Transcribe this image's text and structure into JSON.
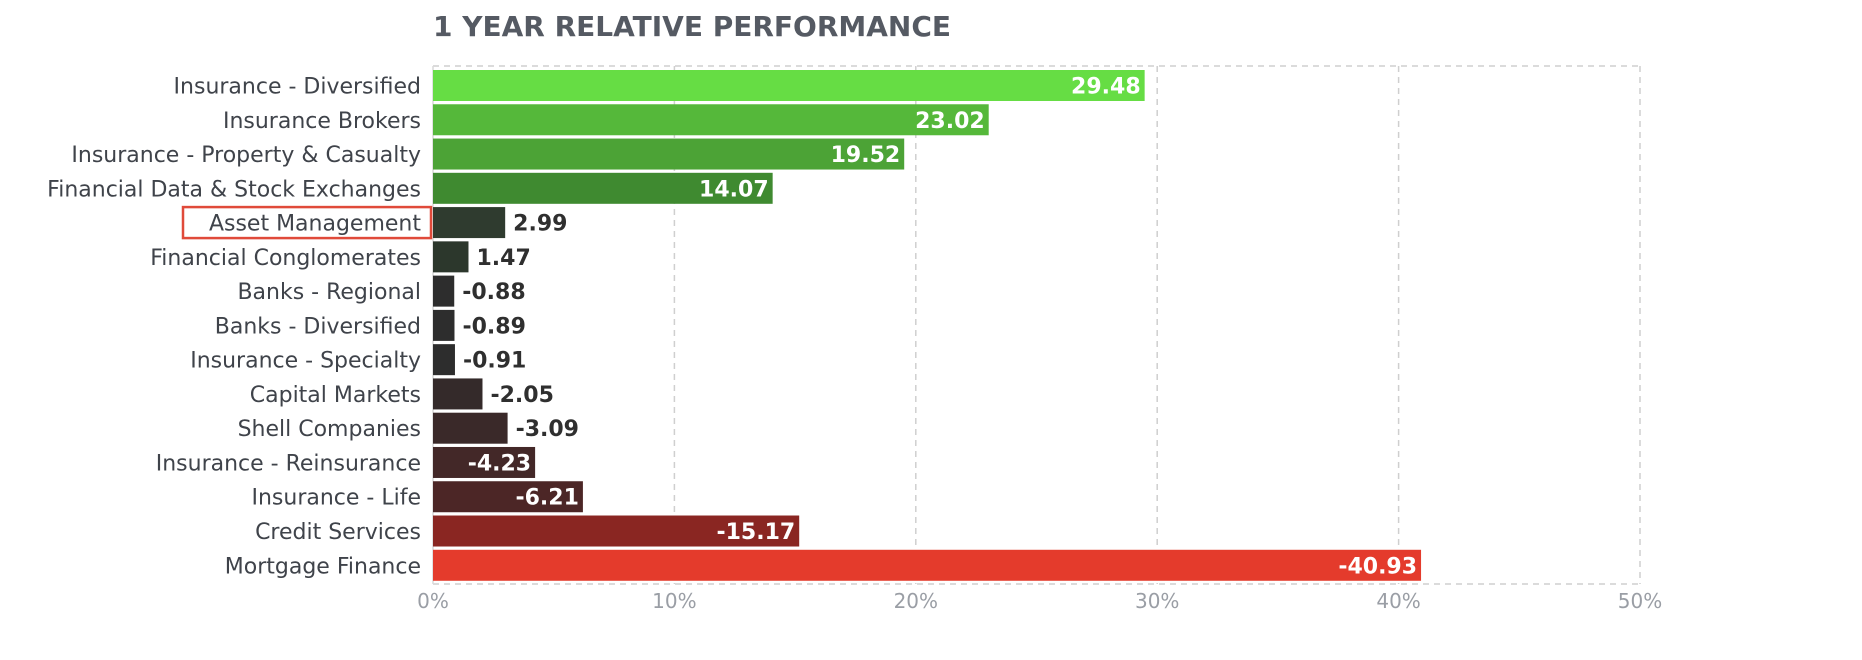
{
  "chart_data": {
    "type": "bar",
    "orientation": "horizontal",
    "title": "1 YEAR RELATIVE PERFORMANCE",
    "categories": [
      "Insurance - Diversified",
      "Insurance Brokers",
      "Insurance - Property & Casualty",
      "Financial Data & Stock Exchanges",
      "Asset Management",
      "Financial Conglomerates",
      "Banks - Regional",
      "Banks - Diversified",
      "Insurance - Specialty",
      "Capital Markets",
      "Shell Companies",
      "Insurance - Reinsurance",
      "Insurance - Life",
      "Credit Services",
      "Mortgage Finance"
    ],
    "values": [
      29.48,
      23.02,
      19.52,
      14.07,
      2.99,
      1.47,
      -0.88,
      -0.89,
      -0.91,
      -2.05,
      -3.09,
      -4.23,
      -6.21,
      -15.17,
      -40.93
    ],
    "value_labels": [
      "29.48",
      "23.02",
      "19.52",
      "14.07",
      "2.99",
      "1.47",
      "-0.88",
      "-0.89",
      "-0.91",
      "-2.05",
      "-3.09",
      "-4.23",
      "-6.21",
      "-15.17",
      "-40.93"
    ],
    "bar_colors": [
      "#66dd44",
      "#55b83a",
      "#4ca336",
      "#3f8a30",
      "#2f3b2f",
      "#2c372c",
      "#2d2d2d",
      "#2d2d2d",
      "#2d2d2d",
      "#342a2a",
      "#3a2929",
      "#432828",
      "#4c2626",
      "#8a2622",
      "#e43b2c"
    ],
    "bar_magnitude": "absolute",
    "highlighted_category": "Asset Management",
    "highlight_color": "#e04a3a",
    "x_ticks": [
      "0%",
      "10%",
      "20%",
      "30%",
      "40%",
      "50%"
    ],
    "x_tick_values": [
      0,
      10,
      20,
      30,
      40,
      50
    ],
    "xlim": [
      0,
      50
    ],
    "xlabel": "",
    "ylabel": "",
    "grid": "vertical-dashed",
    "colors": {
      "title": "#555a63",
      "category_label": "#3f434a",
      "value_label_inside": "#ffffff",
      "value_label_outside": "#2f2f2f",
      "tick_label": "#9a9ea5",
      "grid": "#cfcfcf"
    }
  }
}
